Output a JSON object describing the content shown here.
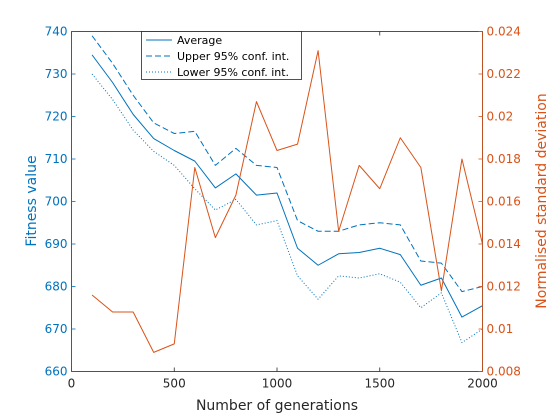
{
  "chart_data": {
    "type": "line",
    "xlabel": "Number of generations",
    "ylabel_left": "Fitness value",
    "ylabel_right": "Normalised standard deviation",
    "xlim": [
      0,
      2000
    ],
    "ylim_left": [
      660,
      740
    ],
    "ylim_right": [
      0.008,
      0.024
    ],
    "x_ticks": [
      "0",
      "500",
      "1000",
      "1500",
      "2000"
    ],
    "y_ticks_left": [
      "660",
      "670",
      "680",
      "690",
      "700",
      "710",
      "720",
      "730",
      "740"
    ],
    "y_ticks_right": [
      "0.008",
      "0.01",
      "0.012",
      "0.014",
      "0.016",
      "0.018",
      "0.02",
      "0.022",
      "0.024"
    ],
    "grid": false,
    "legend_position": "top-left",
    "colors": {
      "left": "#0072BD",
      "right": "#D95319"
    },
    "x": [
      100,
      200,
      300,
      400,
      500,
      600,
      700,
      800,
      900,
      1000,
      1100,
      1200,
      1300,
      1400,
      1500,
      1600,
      1700,
      1800,
      1900,
      2000
    ],
    "series": [
      {
        "name": "Average",
        "axis": "left",
        "style": "solid",
        "values": [
          734.5,
          728.0,
          720.5,
          714.8,
          712.0,
          709.5,
          703.2,
          706.5,
          701.5,
          702.0,
          689.0,
          685.0,
          687.7,
          688.0,
          689.0,
          687.5,
          680.3,
          682.0,
          672.8,
          675.5
        ]
      },
      {
        "name": "Upper 95% conf. int.",
        "axis": "left",
        "style": "dashed",
        "values": [
          739.0,
          732.5,
          725.0,
          718.5,
          716.0,
          716.5,
          708.5,
          712.5,
          708.5,
          708.0,
          695.5,
          693.0,
          693.0,
          694.5,
          695.0,
          694.5,
          686.0,
          685.5,
          678.8,
          680.0
        ]
      },
      {
        "name": "Lower 95% conf. int.",
        "axis": "left",
        "style": "dotted",
        "values": [
          730.0,
          724.0,
          716.8,
          711.8,
          708.5,
          703.0,
          698.0,
          700.5,
          694.5,
          695.5,
          682.5,
          677.0,
          682.5,
          682.0,
          683.0,
          681.0,
          675.0,
          678.5,
          666.8,
          670.0
        ]
      },
      {
        "name": "",
        "axis": "right",
        "style": "solid",
        "values": [
          0.0116,
          0.0108,
          0.0108,
          0.0089,
          0.0093,
          0.0176,
          0.0143,
          0.0163,
          0.0207,
          0.0184,
          0.0187,
          0.0231,
          0.0146,
          0.0177,
          0.0166,
          0.019,
          0.0176,
          0.0118,
          0.018,
          0.014
        ]
      }
    ]
  }
}
